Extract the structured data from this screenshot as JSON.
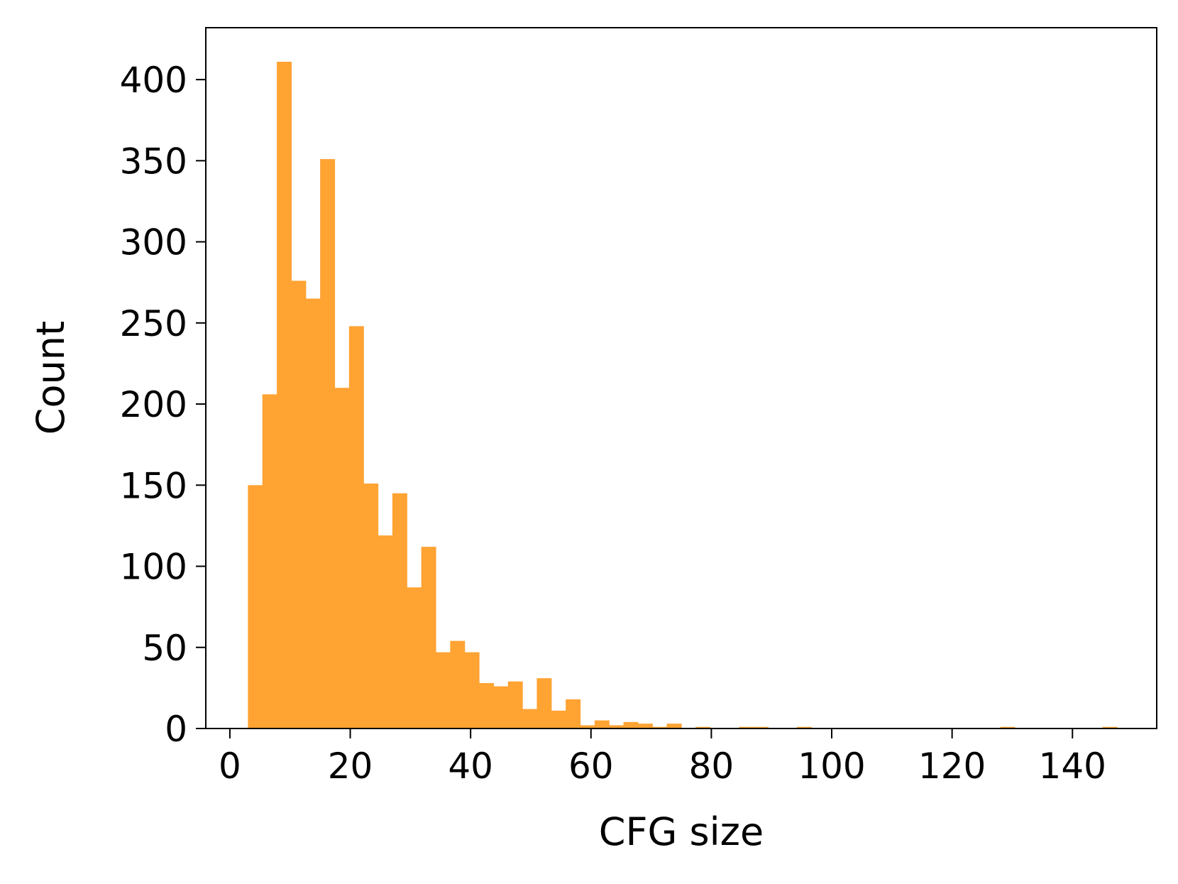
{
  "chart_data": {
    "type": "bar",
    "subtype": "histogram",
    "xlabel": "CFG size",
    "ylabel": "Count",
    "xlim": [
      -4,
      154
    ],
    "ylim": [
      0,
      432
    ],
    "xticks": [
      0,
      20,
      40,
      60,
      80,
      100,
      120,
      140
    ],
    "yticks": [
      0,
      50,
      100,
      150,
      200,
      250,
      300,
      350,
      400
    ],
    "bar_color": "#ffa333",
    "bin_width": 2.4,
    "grid": false,
    "legend": "none",
    "bins": [
      {
        "x": 3.0,
        "count": 150
      },
      {
        "x": 5.4,
        "count": 206
      },
      {
        "x": 7.8,
        "count": 411
      },
      {
        "x": 10.2,
        "count": 276
      },
      {
        "x": 12.6,
        "count": 265
      },
      {
        "x": 15.0,
        "count": 351
      },
      {
        "x": 17.4,
        "count": 210
      },
      {
        "x": 19.8,
        "count": 248
      },
      {
        "x": 22.2,
        "count": 151
      },
      {
        "x": 24.6,
        "count": 119
      },
      {
        "x": 27.0,
        "count": 145
      },
      {
        "x": 29.4,
        "count": 87
      },
      {
        "x": 31.8,
        "count": 112
      },
      {
        "x": 34.2,
        "count": 47
      },
      {
        "x": 36.6,
        "count": 54
      },
      {
        "x": 39.0,
        "count": 47
      },
      {
        "x": 41.4,
        "count": 28
      },
      {
        "x": 43.8,
        "count": 26
      },
      {
        "x": 46.2,
        "count": 29
      },
      {
        "x": 48.6,
        "count": 12
      },
      {
        "x": 51.0,
        "count": 31
      },
      {
        "x": 53.4,
        "count": 11
      },
      {
        "x": 55.8,
        "count": 18
      },
      {
        "x": 58.2,
        "count": 2
      },
      {
        "x": 60.6,
        "count": 5
      },
      {
        "x": 63.0,
        "count": 2
      },
      {
        "x": 65.4,
        "count": 4
      },
      {
        "x": 67.8,
        "count": 3
      },
      {
        "x": 70.2,
        "count": 1
      },
      {
        "x": 72.6,
        "count": 3
      },
      {
        "x": 77.4,
        "count": 1
      },
      {
        "x": 84.6,
        "count": 1
      },
      {
        "x": 87.0,
        "count": 1
      },
      {
        "x": 94.2,
        "count": 1
      },
      {
        "x": 128.0,
        "count": 1
      },
      {
        "x": 145.0,
        "count": 1
      }
    ]
  }
}
